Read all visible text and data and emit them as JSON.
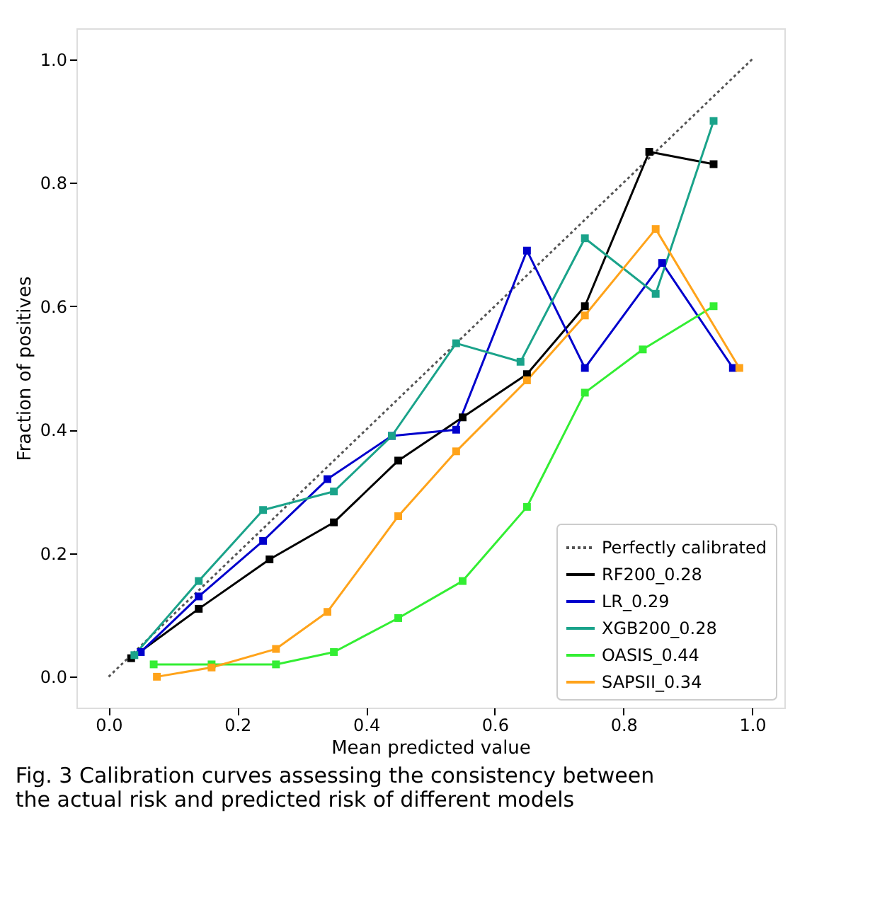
{
  "chart_data": {
    "type": "line",
    "xlabel": "Mean predicted value",
    "ylabel": "Fraction of positives",
    "annotations": [
      "Fig. 3 Calibration curves assessing the consistency between the actual risk and predicted risk of different models"
    ],
    "xlim": [
      -0.05,
      1.05
    ],
    "ylim": [
      -0.05,
      1.05
    ],
    "xticks": [
      {
        "value": 0,
        "label": "0.0"
      },
      {
        "value": 0.2,
        "label": "0.2"
      },
      {
        "value": 0.4,
        "label": "0.4"
      },
      {
        "value": 0.6,
        "label": "0.6"
      },
      {
        "value": 0.8,
        "label": "0.8"
      },
      {
        "value": 1,
        "label": "1.0"
      }
    ],
    "yticks": [
      {
        "value": 0,
        "label": "0.0"
      },
      {
        "value": 0.2,
        "label": "0.2"
      },
      {
        "value": 0.4,
        "label": "0.4"
      },
      {
        "value": 0.6,
        "label": "0.6"
      },
      {
        "value": 0.8,
        "label": "0.8"
      },
      {
        "value": 1,
        "label": "1.0"
      }
    ],
    "grid": false,
    "legend": "bottom right",
    "marker": "square",
    "line_style": "solid",
    "series": [
      {
        "name": "Perfectly calibrated",
        "color": "#555555",
        "line_style": "dotted",
        "marker": "none",
        "x": [
          0,
          1
        ],
        "values": [
          0,
          1
        ]
      },
      {
        "name": "RF200_0.28",
        "color": "#000000",
        "x": [
          0.035,
          0.14,
          0.25,
          0.35,
          0.45,
          0.55,
          0.65,
          0.74,
          0.84,
          0.94
        ],
        "values": [
          0.03,
          0.11,
          0.19,
          0.25,
          0.35,
          0.42,
          0.49,
          0.6,
          0.85,
          0.83
        ]
      },
      {
        "name": "LR_0.29",
        "color": "#0000cc",
        "x": [
          0.05,
          0.14,
          0.24,
          0.34,
          0.44,
          0.54,
          0.65,
          0.74,
          0.86,
          0.97
        ],
        "values": [
          0.04,
          0.13,
          0.22,
          0.32,
          0.39,
          0.4,
          0.69,
          0.5,
          0.67,
          0.5
        ]
      },
      {
        "name": "XGB200_0.28",
        "color": "#1aa38a",
        "x": [
          0.04,
          0.14,
          0.24,
          0.35,
          0.44,
          0.54,
          0.64,
          0.74,
          0.85,
          0.94
        ],
        "values": [
          0.035,
          0.155,
          0.27,
          0.3,
          0.39,
          0.54,
          0.51,
          0.71,
          0.62,
          0.9
        ]
      },
      {
        "name": "OASIS_0.44",
        "color": "#33ee33",
        "x": [
          0.07,
          0.16,
          0.26,
          0.35,
          0.45,
          0.55,
          0.65,
          0.74,
          0.83,
          0.94
        ],
        "values": [
          0.02,
          0.02,
          0.02,
          0.04,
          0.095,
          0.155,
          0.275,
          0.46,
          0.53,
          0.6
        ]
      },
      {
        "name": "SAPSII_0.34",
        "color": "#ffa31a",
        "x": [
          0.075,
          0.16,
          0.26,
          0.34,
          0.45,
          0.54,
          0.65,
          0.74,
          0.85,
          0.98
        ],
        "values": [
          0.0,
          0.015,
          0.045,
          0.105,
          0.26,
          0.365,
          0.48,
          0.585,
          0.725,
          0.5
        ]
      }
    ]
  }
}
